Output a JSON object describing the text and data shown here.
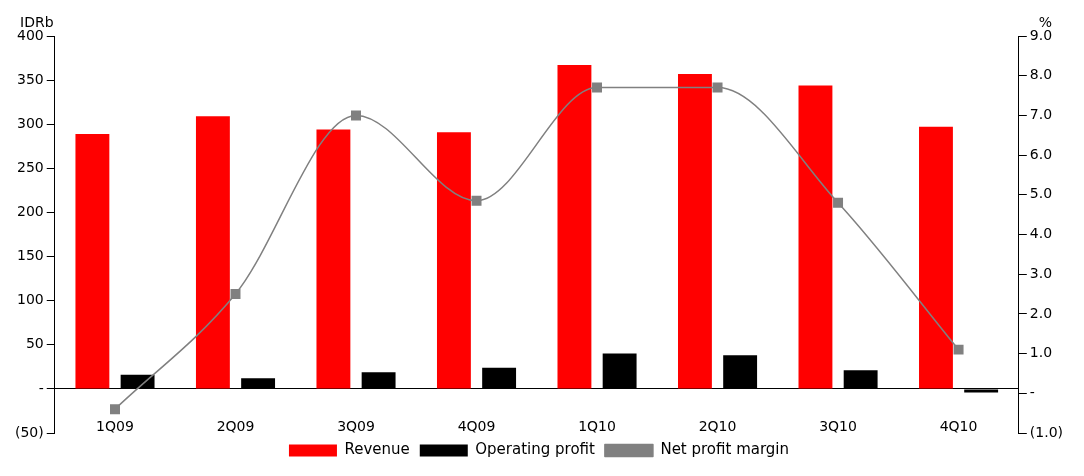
{
  "chart_data": {
    "type": "bar",
    "ylabel": "IDRb",
    "y2label": "%",
    "categories": [
      "1Q09",
      "2Q09",
      "3Q09",
      "4Q09",
      "1Q10",
      "2Q10",
      "3Q10",
      "4Q10"
    ],
    "series": [
      {
        "name": "Revenue",
        "color": "#ff0000",
        "values": [
          289,
          309,
          294,
          291,
          367,
          357,
          344,
          297
        ]
      },
      {
        "name": "Operating profit",
        "color": "#000000",
        "values": [
          16,
          12,
          19,
          24,
          40,
          38,
          21,
          -4
        ]
      },
      {
        "name": "Net profit margin",
        "type": "line",
        "axis": "y2",
        "color": "#808080",
        "values": [
          -0.4,
          2.5,
          7.0,
          4.85,
          7.7,
          7.7,
          4.8,
          1.1
        ]
      }
    ],
    "ylim": [
      -50,
      400
    ],
    "yticks": [
      {
        "value": -50,
        "label": "(50)"
      },
      {
        "value": 0,
        "label": "-"
      },
      50,
      100,
      150,
      200,
      250,
      300,
      350,
      400
    ],
    "y2lim": [
      -1,
      9
    ],
    "y2ticks": [
      {
        "value": -1,
        "label": "(1.0)"
      },
      {
        "value": 0,
        "label": "-"
      },
      {
        "value": 1,
        "label": "1.0"
      },
      {
        "value": 2,
        "label": "2.0"
      },
      {
        "value": 3,
        "label": "3.0"
      },
      {
        "value": 4,
        "label": "4.0"
      },
      {
        "value": 5,
        "label": "5.0"
      },
      {
        "value": 6,
        "label": "6.0"
      },
      {
        "value": 7,
        "label": "7.0"
      },
      {
        "value": 8,
        "label": "8.0"
      },
      {
        "value": 9,
        "label": "9.0"
      }
    ],
    "grid": false,
    "legend": "bottom",
    "marker": "square"
  }
}
